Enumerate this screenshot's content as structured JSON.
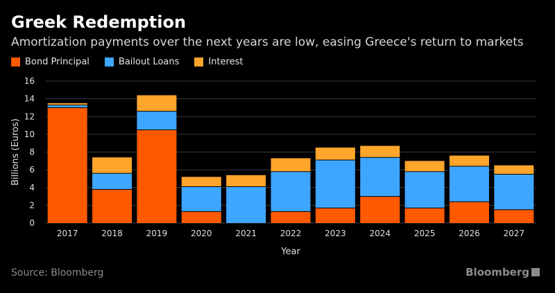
{
  "header": {
    "title": "Greek Redemption",
    "subtitle": "Amortization payments over the next years are low, easing Greece's return to markets"
  },
  "legend": {
    "items": [
      {
        "label": "Bond Principal",
        "color": "#ff5a00"
      },
      {
        "label": "Bailout Loans",
        "color": "#3ea6ff"
      },
      {
        "label": "Interest",
        "color": "#ffa52a"
      }
    ]
  },
  "footer": {
    "source": "Source: Bloomberg",
    "brand": "Bloomberg"
  },
  "chart_data": {
    "type": "bar",
    "stacked": true,
    "categories": [
      "2017",
      "2018",
      "2019",
      "2020",
      "2021",
      "2022",
      "2023",
      "2024",
      "2025",
      "2026",
      "2027"
    ],
    "series": [
      {
        "name": "Bond Principal",
        "color": "#ff5a00",
        "values": [
          13.0,
          3.8,
          10.5,
          1.3,
          0.0,
          1.3,
          1.7,
          3.0,
          1.7,
          2.4,
          1.5
        ]
      },
      {
        "name": "Bailout Loans",
        "color": "#3ea6ff",
        "values": [
          0.3,
          1.8,
          2.1,
          2.8,
          4.1,
          4.5,
          5.4,
          4.4,
          4.1,
          4.0,
          4.0
        ]
      },
      {
        "name": "Interest",
        "color": "#ffa52a",
        "values": [
          0.2,
          1.8,
          1.8,
          1.1,
          1.3,
          1.5,
          1.4,
          1.3,
          1.2,
          1.2,
          1.0
        ]
      }
    ],
    "xlabel": "Year",
    "ylabel": "Billions (Euros)",
    "ylim": [
      0,
      16
    ],
    "yticks": [
      0,
      2,
      4,
      6,
      8,
      10,
      12,
      14,
      16
    ],
    "grid": true,
    "legend_position": "top-left"
  }
}
